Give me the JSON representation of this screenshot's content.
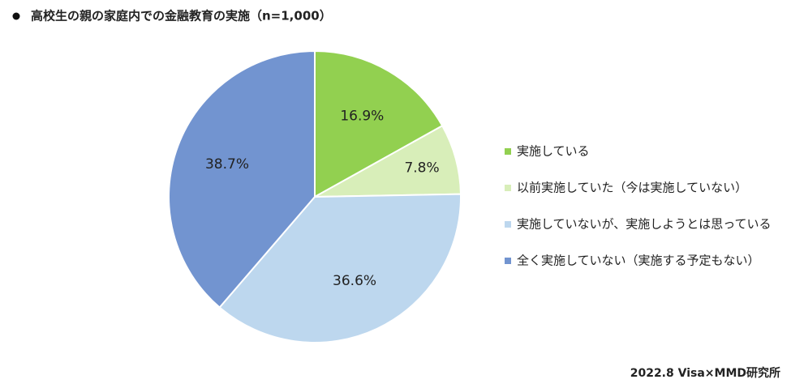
{
  "chart_data": {
    "type": "pie",
    "title": "高校生の親の家庭内での金融教育の実施（n=1,000）",
    "source": "2022.8 Visa×MMD研究所",
    "categories": [
      "実施している",
      "以前実施していた（今は実施していない）",
      "実施していないが、実施しようとは思っている",
      "全く実施していない（実施する予定もない）"
    ],
    "values": [
      16.9,
      7.8,
      36.6,
      38.7
    ],
    "value_labels": [
      "16.9%",
      "7.8%",
      "36.6%",
      "38.7%"
    ],
    "colors": [
      "#92d050",
      "#d8eeb9",
      "#bdd7ee",
      "#7294d0"
    ]
  }
}
